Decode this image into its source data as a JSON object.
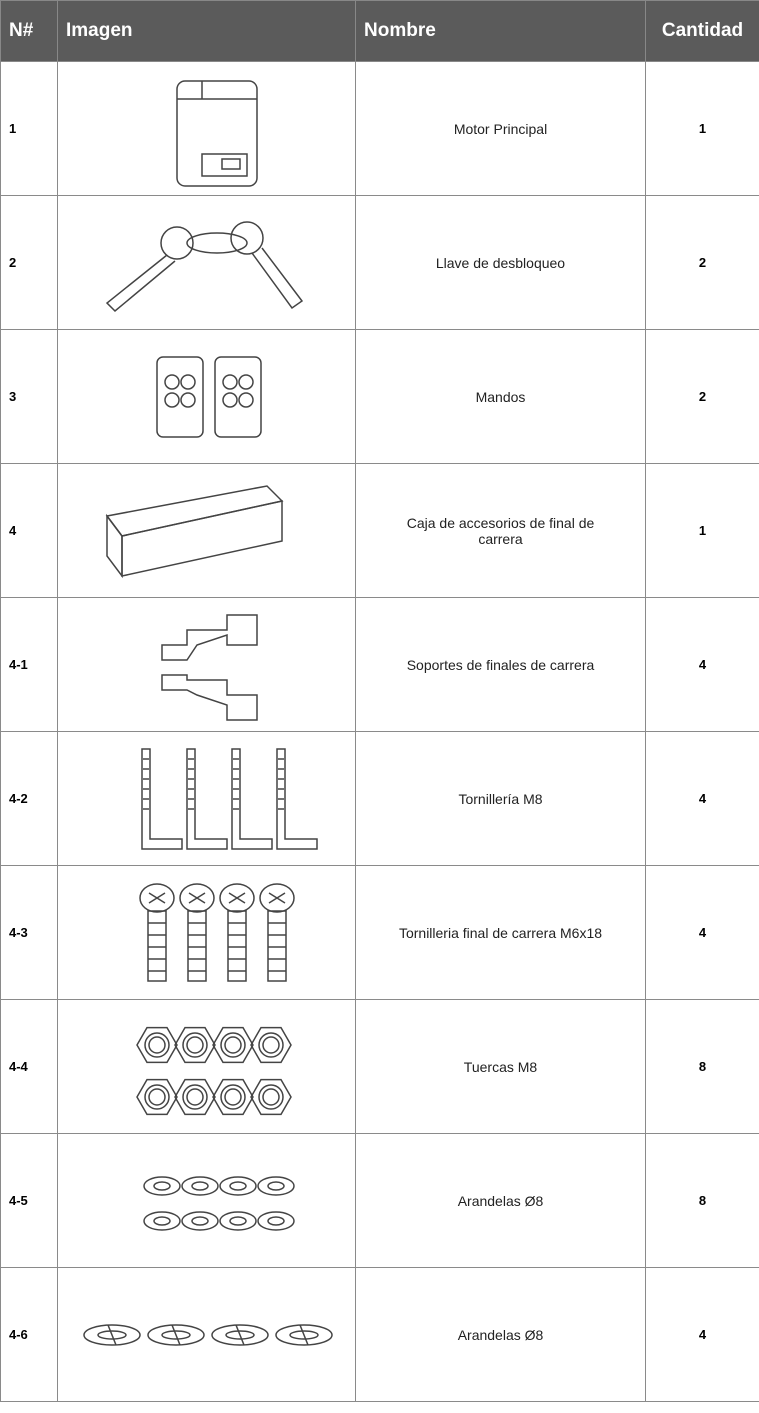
{
  "table": {
    "header": [
      "N#",
      "Imagen",
      "Nombre",
      "Cantidad"
    ],
    "rows": [
      [
        "1",
        "Motor Principal",
        "1"
      ],
      [
        "2",
        "Llave de desbloqueo",
        "2"
      ],
      [
        "3",
        "Mandos",
        "2"
      ],
      [
        "4",
        "Caja de accesorios de final de carrera",
        "1"
      ],
      [
        "4-1",
        "Soportes de finales de carrera",
        "4"
      ],
      [
        "4-2",
        "Tornillería  M8",
        "4"
      ],
      [
        "4-3",
        "Tornilleria  final de carrera M6x18",
        "4"
      ],
      [
        "4-4",
        "Tuercas  M8",
        "8"
      ],
      [
        "4-5",
        "Arandelas Ø8",
        "8"
      ],
      [
        "4-6",
        "Arandelas Ø8",
        "4"
      ]
    ]
  }
}
